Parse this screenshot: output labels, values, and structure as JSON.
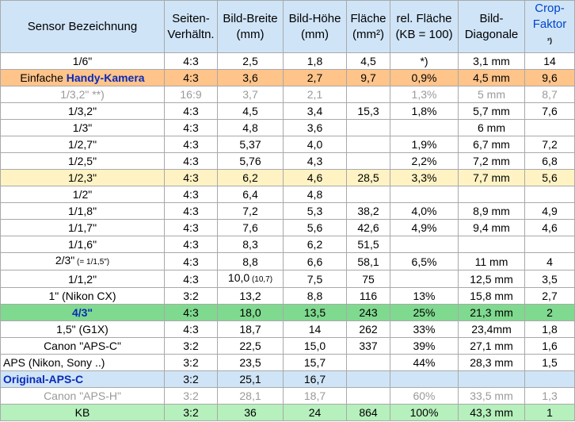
{
  "headers": {
    "sensor": "Sensor Bezeichnung",
    "ratio": "Seiten-Verhältn.",
    "width": "Bild-Breite (mm)",
    "height": "Bild-Höhe (mm)",
    "area": "Fläche (mm²)",
    "rel": "rel. Fläche (KB = 100)",
    "diag": "Bild-Diagonale",
    "crop": "Crop-Faktor",
    "crop_note": "²)"
  },
  "rows": [
    {
      "sensor": "1/6\"",
      "ratio": "4:3",
      "width": "2,5",
      "height": "1,8",
      "area": "4,5",
      "rel": "*)",
      "diag": "3,1 mm",
      "crop": "14"
    },
    {
      "sensor_pre": "Einfache ",
      "sensor": "Handy-Kamera",
      "ratio": "4:3",
      "width": "3,6",
      "height": "2,7",
      "area": "9,7",
      "rel": "0,9%",
      "diag": "4,5 mm",
      "crop": "9,6"
    },
    {
      "sensor": "1/3,2\"  **)",
      "ratio": "16:9",
      "width": "3,7",
      "height": "2,1",
      "area": "",
      "rel": "1,3%",
      "diag": "5 mm",
      "crop": "8,7"
    },
    {
      "sensor": "1/3,2\"",
      "ratio": "4:3",
      "width": "4,5",
      "height": "3,4",
      "area": "15,3",
      "rel": "1,8%",
      "diag": "5,7 mm",
      "crop": "7,6"
    },
    {
      "sensor": "1/3\"",
      "ratio": "4:3",
      "width": "4,8",
      "height": "3,6",
      "area": "",
      "rel": "",
      "diag": "6 mm",
      "crop": ""
    },
    {
      "sensor": "1/2,7\"",
      "ratio": "4:3",
      "width": "5,37",
      "height": "4,0",
      "area": "",
      "rel": "1,9%",
      "diag": "6,7 mm",
      "crop": "7,2"
    },
    {
      "sensor": "1/2,5\"",
      "ratio": "4:3",
      "width": "5,76",
      "height": "4,3",
      "area": "",
      "rel": "2,2%",
      "diag": "7,2 mm",
      "crop": "6,8"
    },
    {
      "sensor": "1/2,3\"",
      "ratio": "4:3",
      "width": "6,2",
      "height": "4,6",
      "area": "28,5",
      "rel": "3,3%",
      "diag": "7,7 mm",
      "crop": "5,6"
    },
    {
      "sensor": "1/2\"",
      "ratio": "4:3",
      "width": "6,4",
      "height": "4,8",
      "area": "",
      "rel": "",
      "diag": "",
      "crop": ""
    },
    {
      "sensor": "1/1,8\"",
      "ratio": "4:3",
      "width": "7,2",
      "height": "5,3",
      "area": "38,2",
      "rel": "4,0%",
      "diag": "8,9 mm",
      "crop": "4,9"
    },
    {
      "sensor": "1/1,7\"",
      "ratio": "4:3",
      "width": "7,6",
      "height": "5,6",
      "area": "42,6",
      "rel": "4,9%",
      "diag": "9,4 mm",
      "crop": "4,6"
    },
    {
      "sensor": "1/1,6\"",
      "ratio": "4:3",
      "width": "8,3",
      "height": "6,2",
      "area": "51,5",
      "rel": "",
      "diag": "",
      "crop": ""
    },
    {
      "sensor": "2/3\"",
      "sensor_small": " (= 1/1,5\")",
      "ratio": "4:3",
      "width": "8,8",
      "height": "6,6",
      "area": "58,1",
      "rel": "6,5%",
      "diag": "11 mm",
      "crop": "4"
    },
    {
      "sensor": "1/1,2\"",
      "ratio": "4:3",
      "width": "10,0",
      "width_small": " (10,7)",
      "height": "7,5",
      "area": "75",
      "rel": "",
      "diag": "12,5 mm",
      "crop": "3,5"
    },
    {
      "sensor": "1\"  (Nikon CX)",
      "ratio": "3:2",
      "width": "13,2",
      "height": "8,8",
      "area": "116",
      "rel": "13%",
      "diag": "15,8 mm",
      "crop": "2,7"
    },
    {
      "sensor": "4/3\"",
      "ratio": "4:3",
      "width": "18,0",
      "height": "13,5",
      "area": "243",
      "rel": "25%",
      "diag": "21,3 mm",
      "crop": "2"
    },
    {
      "sensor": "1,5\" (G1X)",
      "ratio": "4:3",
      "width": "18,7",
      "height": "14",
      "area": "262",
      "rel": "33%",
      "diag": "23,4mm",
      "crop": "1,8"
    },
    {
      "sensor": "Canon \"APS-C\"",
      "ratio": "3:2",
      "width": "22,5",
      "height": "15,0",
      "area": "337",
      "rel": "39%",
      "diag": "27,1 mm",
      "crop": "1,6"
    },
    {
      "sensor": "APS (Nikon, Sony ..)",
      "ratio": "3:2",
      "width": "23,5",
      "height": "15,7",
      "area": "",
      "rel": "44%",
      "diag": "28,3 mm",
      "crop": "1,5"
    },
    {
      "sensor": "Original-APS-C",
      "ratio": "3:2",
      "width": "25,1",
      "height": "16,7",
      "area": "",
      "rel": "",
      "diag": "",
      "crop": ""
    },
    {
      "sensor": "Canon \"APS-H\"",
      "ratio": "3:2",
      "width": "28,1",
      "height": "18,7",
      "area": "",
      "rel": "60%",
      "diag": "33,5 mm",
      "crop": "1,3"
    },
    {
      "sensor": "KB",
      "ratio": "3:2",
      "width": "36",
      "height": "24",
      "area": "864",
      "rel": "100%",
      "diag": "43,3 mm",
      "crop": "1"
    }
  ],
  "colors": {
    "header_bg": "#cfe4f7",
    "orange": "#ffc48a",
    "yellow": "#fff3c4",
    "green": "#7fd98f",
    "light_green": "#b6f0bc",
    "blue_bg": "#cfe4f7",
    "grey_text": "#9a9a9a",
    "accent_blue": "#0a2bb8"
  }
}
